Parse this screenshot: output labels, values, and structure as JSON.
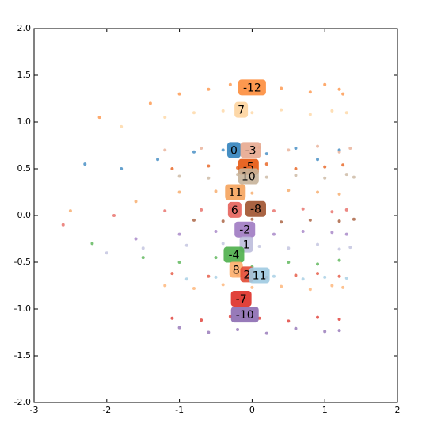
{
  "chart_data": {
    "type": "scatter",
    "xlim": [
      -3,
      2
    ],
    "xticks": [
      -3,
      -2,
      -1,
      0,
      1,
      2
    ],
    "ylim": [
      -2,
      2
    ],
    "yticks": [
      {
        "value": -2,
        "label": "-2.0"
      },
      -1.5,
      {
        "value": -1,
        "label": "-1.0"
      },
      -0.5,
      {
        "value": 0,
        "label": "0.0"
      },
      0.5,
      {
        "value": 1,
        "label": "1.0"
      },
      1.5,
      {
        "value": 2,
        "label": "2.0"
      }
    ],
    "series": [
      {
        "color": "#fd8d3c",
        "x": [
          -2.1,
          -1.4,
          -1.0,
          -0.6,
          -0.3,
          0.1,
          0.4,
          0.8,
          1.0,
          1.2,
          1.25
        ],
        "values": [
          1.05,
          1.2,
          1.3,
          1.35,
          1.4,
          1.38,
          1.36,
          1.32,
          1.4,
          1.35,
          1.3
        ]
      },
      {
        "color": "#fdd49e",
        "x": [
          -1.8,
          -1.2,
          -0.8,
          -0.4,
          0.0,
          0.4,
          0.8,
          1.1,
          1.3
        ],
        "values": [
          0.95,
          1.05,
          1.1,
          1.12,
          1.1,
          1.13,
          1.08,
          1.12,
          1.1
        ]
      },
      {
        "color": "#3182bd",
        "x": [
          -2.3,
          -1.8,
          -1.3,
          -0.8,
          -0.4,
          0.2,
          0.6,
          0.9,
          1.2
        ],
        "values": [
          0.55,
          0.5,
          0.6,
          0.68,
          0.7,
          0.66,
          0.72,
          0.6,
          0.7
        ]
      },
      {
        "color": "#e7a98f",
        "x": [
          -1.2,
          -0.7,
          -0.3,
          0.1,
          0.5,
          0.9,
          1.2,
          1.35
        ],
        "values": [
          0.7,
          0.72,
          0.69,
          0.73,
          0.7,
          0.74,
          0.68,
          0.72
        ]
      },
      {
        "color": "#e6550d",
        "x": [
          -1.1,
          -0.6,
          -0.2,
          0.2,
          0.6,
          1.0,
          1.25
        ],
        "values": [
          0.5,
          0.53,
          0.51,
          0.55,
          0.5,
          0.52,
          0.54
        ]
      },
      {
        "color": "#c7b299",
        "x": [
          -1.0,
          -0.6,
          -0.2,
          0.2,
          0.6,
          1.0,
          1.3,
          1.4
        ],
        "values": [
          0.42,
          0.4,
          0.44,
          0.41,
          0.43,
          0.4,
          0.44,
          0.41
        ]
      },
      {
        "color": "#f5a35c",
        "x": [
          -2.5,
          -1.6,
          -1.0,
          -0.5,
          0.0,
          0.5,
          0.9,
          1.2
        ],
        "values": [
          0.05,
          0.15,
          0.25,
          0.26,
          0.24,
          0.27,
          0.25,
          0.23
        ]
      },
      {
        "color": "#e6625b",
        "x": [
          -2.6,
          -1.9,
          -1.2,
          -0.7,
          -0.3,
          0.3,
          0.7,
          1.1,
          1.3
        ],
        "values": [
          -0.1,
          0.0,
          0.05,
          0.06,
          0.08,
          0.05,
          0.07,
          0.04,
          0.06
        ]
      },
      {
        "color": "#a0522d",
        "x": [
          -0.8,
          -0.4,
          0.0,
          0.4,
          0.8,
          1.2,
          1.4
        ],
        "values": [
          -0.05,
          -0.06,
          -0.04,
          -0.07,
          -0.05,
          -0.06,
          -0.04
        ]
      },
      {
        "color": "#9e7ac2",
        "x": [
          -1.6,
          -1.0,
          -0.5,
          -0.1,
          0.3,
          0.7,
          1.1,
          1.3
        ],
        "values": [
          -0.25,
          -0.2,
          -0.17,
          -0.15,
          -0.2,
          -0.17,
          -0.18,
          -0.2
        ]
      },
      {
        "color": "#bcbddc",
        "x": [
          -2.0,
          -1.5,
          -0.9,
          -0.4,
          0.1,
          0.5,
          0.9,
          1.2,
          1.35
        ],
        "values": [
          -0.4,
          -0.35,
          -0.32,
          -0.3,
          -0.33,
          -0.35,
          -0.31,
          -0.36,
          -0.34
        ]
      },
      {
        "color": "#4daf4a",
        "x": [
          -2.2,
          -1.5,
          -1.0,
          -0.5,
          0.0,
          0.5,
          0.9,
          1.2
        ],
        "values": [
          -0.3,
          -0.45,
          -0.5,
          -0.45,
          -0.55,
          -0.5,
          -0.52,
          -0.48
        ]
      },
      {
        "color": "#fdae6b",
        "x": [
          -1.2,
          -0.8,
          -0.4,
          0.0,
          0.4,
          0.8,
          1.1,
          1.25
        ],
        "values": [
          -0.75,
          -0.78,
          -0.74,
          -0.77,
          -0.76,
          -0.79,
          -0.75,
          -0.77
        ]
      },
      {
        "color": "#e34a33",
        "x": [
          -1.1,
          -0.6,
          -0.2,
          0.2,
          0.6,
          0.9,
          1.2
        ],
        "values": [
          -0.62,
          -0.65,
          -0.63,
          -0.66,
          -0.64,
          -0.62,
          -0.65
        ]
      },
      {
        "color": "#9ecae1",
        "x": [
          -0.9,
          -0.5,
          -0.1,
          0.3,
          0.7,
          1.0,
          1.3
        ],
        "values": [
          -0.68,
          -0.66,
          -0.69,
          -0.65,
          -0.68,
          -0.66,
          -0.67
        ]
      },
      {
        "color": "#de2d26",
        "x": [
          -1.1,
          -0.7,
          -0.3,
          0.1,
          0.5,
          0.9,
          1.2
        ],
        "values": [
          -1.1,
          -1.12,
          -1.08,
          -1.1,
          -1.13,
          -1.09,
          -1.11
        ]
      },
      {
        "color": "#8c6bb1",
        "x": [
          -1.0,
          -0.6,
          -0.2,
          0.2,
          0.6,
          1.0,
          1.2
        ],
        "values": [
          -1.2,
          -1.25,
          -1.22,
          -1.26,
          -1.21,
          -1.24,
          -1.23
        ]
      }
    ],
    "annotations": [
      {
        "text": "-12",
        "x": 0.0,
        "y": 1.37,
        "color": "#fd8d3c"
      },
      {
        "text": "7",
        "x": -0.15,
        "y": 1.13,
        "color": "#fdd49e"
      },
      {
        "text": "0",
        "x": -0.25,
        "y": 0.7,
        "color": "#3182bd"
      },
      {
        "text": "-3",
        "x": -0.02,
        "y": 0.7,
        "color": "#e7a98f"
      },
      {
        "text": "-5",
        "x": -0.05,
        "y": 0.52,
        "color": "#e6550d"
      },
      {
        "text": "10",
        "x": -0.05,
        "y": 0.42,
        "color": "#c7b299"
      },
      {
        "text": "11",
        "x": -0.23,
        "y": 0.25,
        "color": "#f5a35c"
      },
      {
        "text": "6",
        "x": -0.24,
        "y": 0.06,
        "color": "#e6625b"
      },
      {
        "text": "-8",
        "x": 0.05,
        "y": 0.07,
        "color": "#a0522d"
      },
      {
        "text": "-2",
        "x": -0.1,
        "y": -0.15,
        "color": "#9e7ac2"
      },
      {
        "text": "1",
        "x": -0.08,
        "y": -0.31,
        "color": "#bcbddc"
      },
      {
        "text": "-4",
        "x": -0.25,
        "y": -0.42,
        "color": "#4daf4a"
      },
      {
        "text": "8",
        "x": -0.22,
        "y": -0.58,
        "color": "#fdae6b"
      },
      {
        "text": "2",
        "x": -0.07,
        "y": -0.63,
        "color": "#e34a33"
      },
      {
        "text": "11",
        "x": 0.1,
        "y": -0.64,
        "color": "#9ecae1"
      },
      {
        "text": "-7",
        "x": -0.15,
        "y": -0.89,
        "color": "#de2d26"
      },
      {
        "text": "-10",
        "x": -0.1,
        "y": -1.06,
        "color": "#8c6bb1"
      }
    ]
  }
}
